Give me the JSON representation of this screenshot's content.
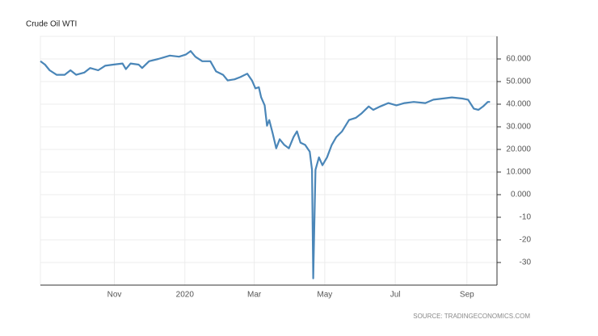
{
  "chart_data": {
    "type": "line",
    "title": "Crude Oil WTI",
    "source": "SOURCE: TRADINGECONOMICS.COM",
    "x": [
      -125,
      -121,
      -117,
      -111,
      -104,
      -99,
      -94,
      -87,
      -82,
      -75,
      -69,
      -62,
      -54,
      -51,
      -47,
      -40,
      -37,
      -31,
      -23,
      -13,
      -5,
      1,
      5,
      9,
      15,
      22,
      27,
      33,
      37,
      43,
      48,
      54,
      58,
      61,
      64,
      66,
      69,
      71,
      73,
      76,
      79,
      82,
      86,
      90,
      94,
      97,
      100,
      104,
      108,
      110,
      111,
      113,
      116,
      119,
      123,
      127,
      131,
      136,
      142,
      148,
      153,
      159,
      163,
      169,
      176,
      183,
      190,
      198,
      208,
      215,
      223,
      231,
      240,
      245,
      250,
      254,
      258,
      262,
      264
    ],
    "series": [
      {
        "name": "Crude Oil WTI",
        "color": "#4a86b8",
        "values": [
          59,
          57.5,
          55,
          53,
          53,
          55,
          53,
          54,
          56,
          55,
          57,
          57.5,
          58,
          55.5,
          58,
          57.5,
          56,
          59,
          60,
          61.5,
          61,
          62,
          63.5,
          61,
          59,
          59,
          54.5,
          53,
          50.5,
          51,
          52,
          53.5,
          50.5,
          47,
          47.5,
          43,
          39.5,
          30.5,
          33,
          27,
          20.5,
          24.5,
          22,
          20.5,
          25.5,
          28,
          23,
          22,
          19,
          11,
          -37,
          11,
          16.5,
          13,
          16.5,
          22,
          25.5,
          28,
          33,
          34,
          36,
          39,
          37.5,
          39,
          40.5,
          39.5,
          40.5,
          41,
          40.5,
          42,
          42.5,
          43,
          42.5,
          42,
          38,
          37.5,
          39,
          41,
          41
        ]
      }
    ],
    "xlim": [
      -125,
      270
    ],
    "xticks": [
      {
        "value": -61,
        "label": "Nov"
      },
      {
        "value": 0,
        "label": "2020"
      },
      {
        "value": 60,
        "label": "Mar"
      },
      {
        "value": 121,
        "label": "May"
      },
      {
        "value": 182,
        "label": "Jul"
      },
      {
        "value": 244,
        "label": "Sep"
      }
    ],
    "ylim": [
      -40,
      70
    ],
    "yticks": [
      {
        "value": 60,
        "label": "60.000"
      },
      {
        "value": 50,
        "label": "50.000"
      },
      {
        "value": 40,
        "label": "40.000"
      },
      {
        "value": 30,
        "label": "30.000"
      },
      {
        "value": 20,
        "label": "20.000"
      },
      {
        "value": 10,
        "label": "10.000"
      },
      {
        "value": 0,
        "label": "0.000"
      },
      -10,
      -20,
      -30
    ],
    "grid": true
  }
}
